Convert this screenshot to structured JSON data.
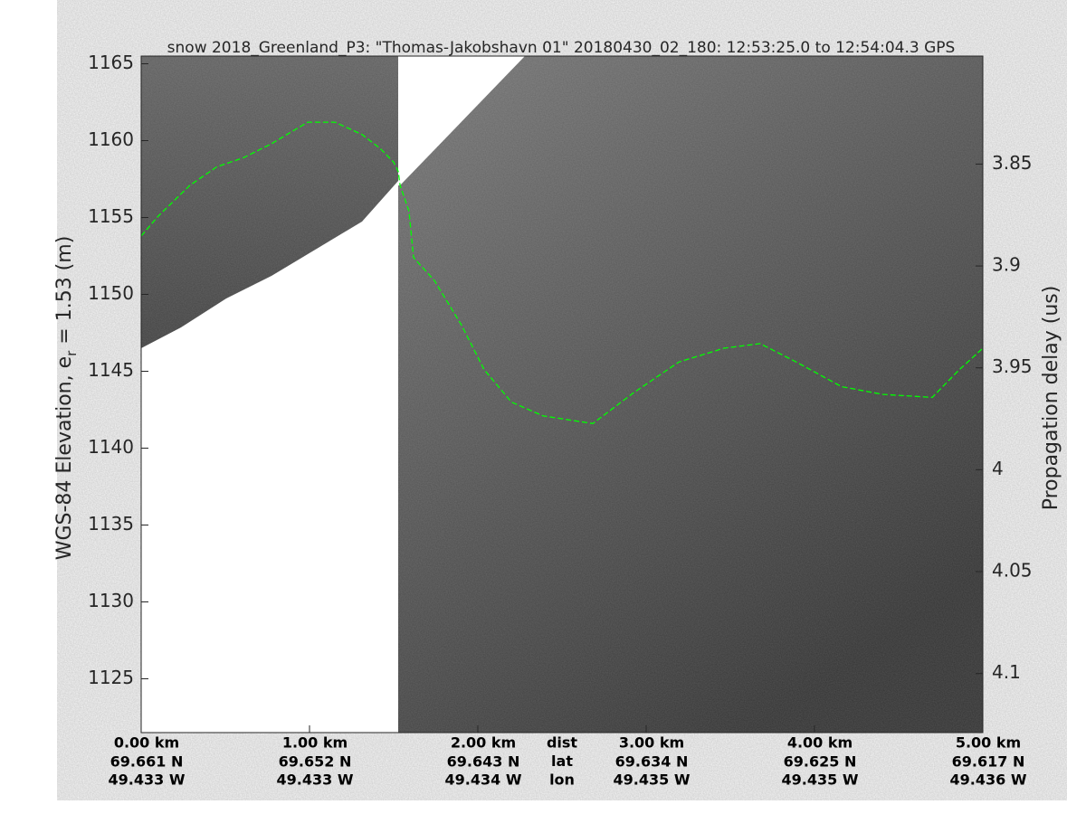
{
  "chart_data": {
    "type": "line",
    "title": "snow 2018_Greenland_P3: \"Thomas-Jakobshavn 01\"  20180430_02_180: 12:53:25.0 to 12:54:04.3 GPS",
    "ylabel": [
      "WGS-84 Elevation, e",
      "r",
      " = 1.53 (m)"
    ],
    "y2label": "Propagation delay (us)",
    "x": [
      0,
      0.102,
      0.29,
      0.45,
      0.61,
      0.774,
      0.989,
      1.151,
      1.312,
      1.419,
      1.5,
      1.527,
      1.538,
      1.591,
      1.618,
      1.742,
      1.903,
      2.038,
      2.199,
      2.387,
      2.683,
      2.925,
      3.194,
      3.462,
      3.677,
      3.892,
      4.161,
      4.403,
      4.699,
      4.86,
      5.0
    ],
    "values": [
      1153.8,
      1155.1,
      1157.1,
      1158.3,
      1158.9,
      1159.8,
      1161.2,
      1161.2,
      1160.4,
      1159.5,
      1158.6,
      1158.0,
      1157.1,
      1155.4,
      1152.4,
      1150.9,
      1148.0,
      1145.1,
      1143.0,
      1142.1,
      1141.6,
      1143.6,
      1145.6,
      1146.5,
      1146.8,
      1145.6,
      1144.0,
      1143.5,
      1143.3,
      1145.1,
      1146.5
    ],
    "color": "#00ff00",
    "xlim": [
      0,
      5
    ],
    "xticks": [
      {
        "value": 0,
        "label": "0.00 km"
      },
      {
        "value": 1,
        "label": "1.00 km"
      },
      {
        "value": 2,
        "label": "2.00 km"
      },
      {
        "value": 3,
        "label": "3.00 km"
      },
      {
        "value": 4,
        "label": "4.00 km"
      },
      {
        "value": 5,
        "label": "5.00 km"
      }
    ],
    "lat_labels": [
      "69.661 N",
      "69.652 N",
      "69.643 N",
      "69.634 N",
      "69.625 N",
      "69.617 N"
    ],
    "lon_labels": [
      "49.433 W",
      "49.433 W",
      "49.434 W",
      "49.435 W",
      "49.435 W",
      "49.436 W"
    ],
    "row_labels": [
      "dist",
      "lat",
      "lon"
    ],
    "ylim": [
      1121.5,
      1165.5
    ],
    "yticks": [
      1125,
      1130,
      1135,
      1140,
      1145,
      1150,
      1155,
      1160,
      1165
    ],
    "y2lim": [
      4.129,
      3.797
    ],
    "y2ticks": [
      3.85,
      3.9,
      3.95,
      4,
      4.05,
      4.1
    ]
  }
}
